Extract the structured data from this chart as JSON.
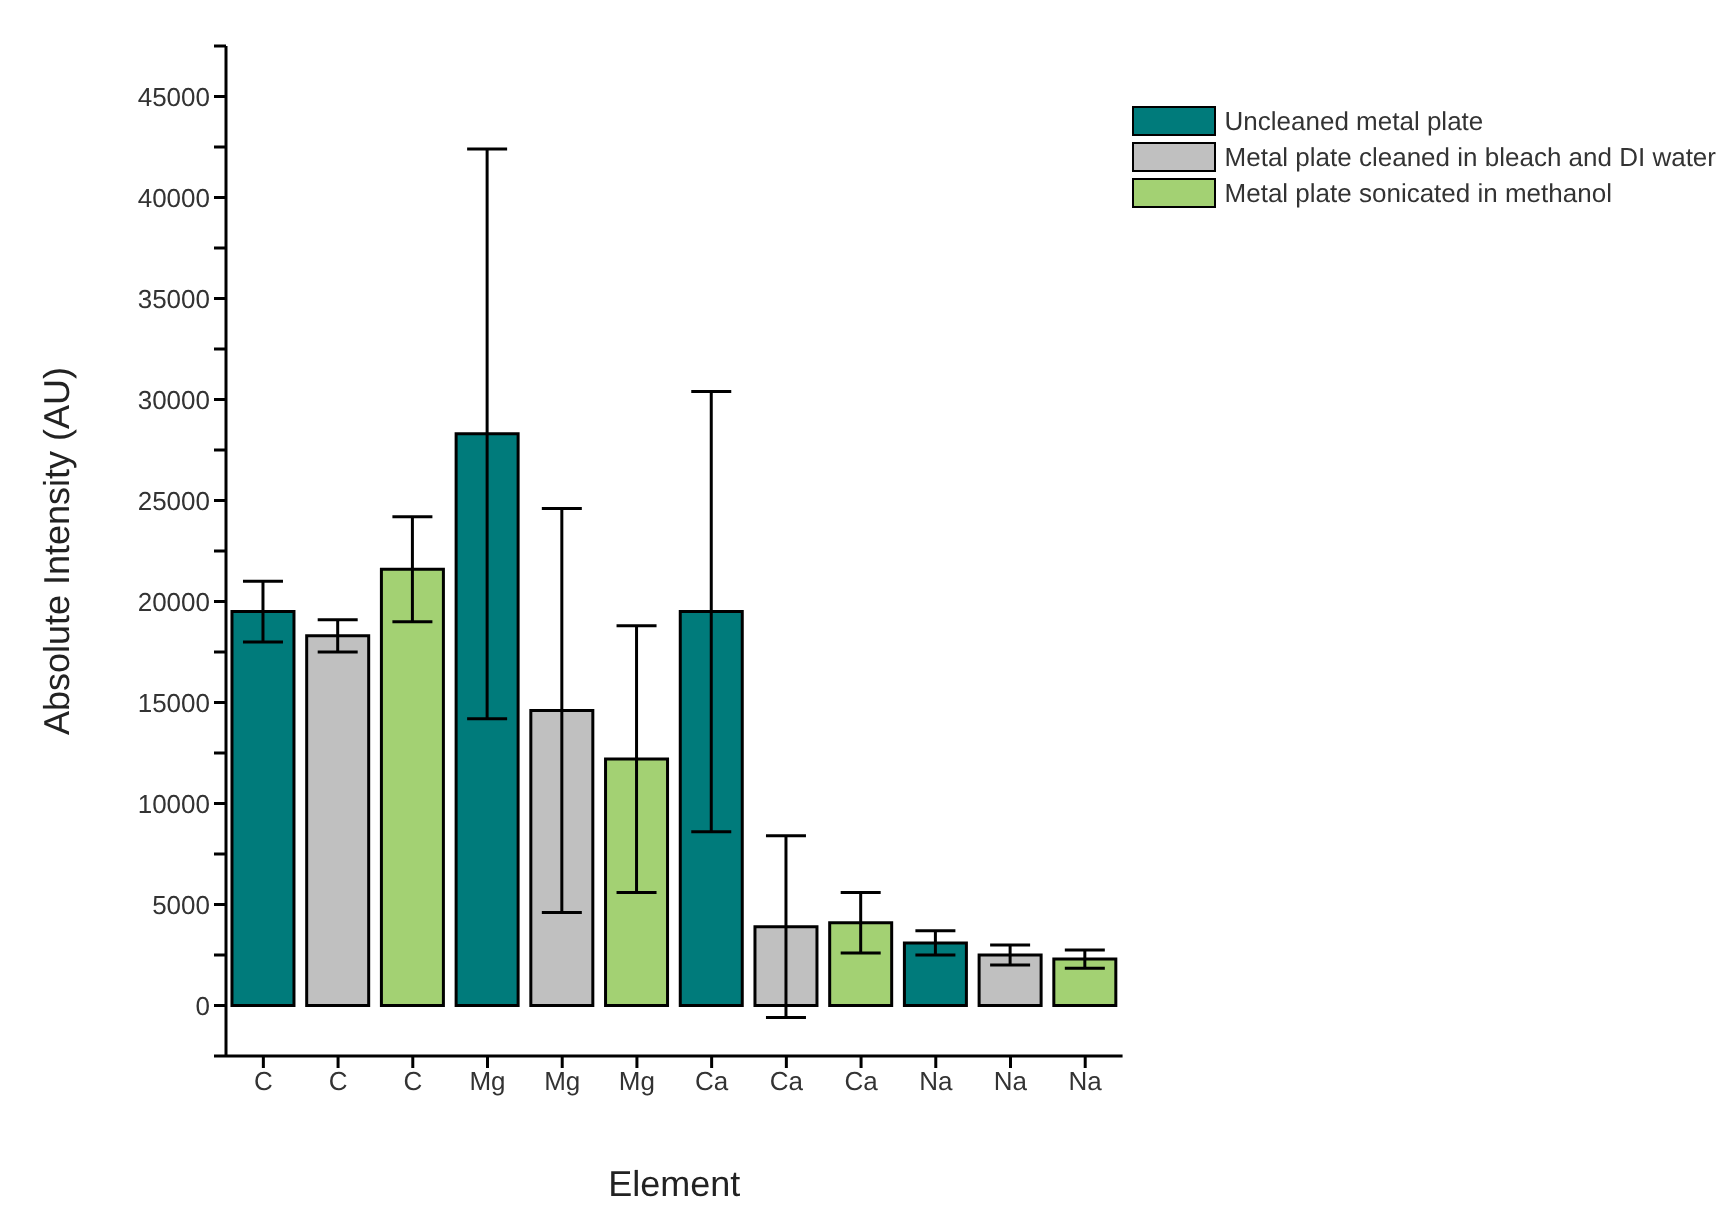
{
  "chart_data": {
    "type": "bar",
    "xlabel": "Element",
    "ylabel": "Absolute Intensity (AU)",
    "categories": [
      "C",
      "C",
      "C",
      "Mg",
      "Mg",
      "Mg",
      "Ca",
      "Ca",
      "Ca",
      "Na",
      "Na",
      "Na"
    ],
    "stacked": true,
    "series": [
      {
        "name": "Uncleaned metal plate",
        "color": "#007b7b",
        "values": [
          19500,
          null,
          null,
          28300,
          null,
          null,
          19500,
          null,
          null,
          3100,
          null,
          null
        ],
        "errors": [
          1500,
          null,
          null,
          14100,
          null,
          null,
          10900,
          null,
          null,
          600,
          null,
          null
        ]
      },
      {
        "name": "Metal plate cleaned in bleach and DI water",
        "color": "#c0c0c0",
        "values": [
          null,
          18300,
          null,
          null,
          14600,
          null,
          null,
          3900,
          null,
          null,
          2500,
          null
        ],
        "errors": [
          null,
          800,
          null,
          null,
          10000,
          null,
          null,
          4500,
          null,
          null,
          500,
          null
        ]
      },
      {
        "name": "Metal plate sonicated in methanol",
        "color": "#a3d173",
        "values": [
          null,
          null,
          21600,
          null,
          null,
          12200,
          null,
          null,
          4100,
          null,
          null,
          2300
        ],
        "errors": [
          null,
          null,
          2600,
          null,
          null,
          6600,
          null,
          null,
          1500,
          null,
          null,
          450
        ]
      }
    ],
    "ylim": [
      -2500,
      47500
    ],
    "yticks": [
      {
        "value": -2500,
        "label": null
      },
      0,
      {
        "value": 2500,
        "label": null
      },
      5000,
      {
        "value": 7500,
        "label": null
      },
      10000,
      {
        "value": 12500,
        "label": null
      },
      15000,
      {
        "value": 17500,
        "label": null
      },
      20000,
      {
        "value": 22500,
        "label": null
      },
      25000,
      {
        "value": 27500,
        "label": null
      },
      30000,
      {
        "value": 32500,
        "label": null
      },
      35000,
      {
        "value": 37500,
        "label": null
      },
      40000,
      {
        "value": 42500,
        "label": null
      },
      45000,
      {
        "value": 47500,
        "label": null
      }
    ],
    "grid": false,
    "legend": "top right"
  }
}
